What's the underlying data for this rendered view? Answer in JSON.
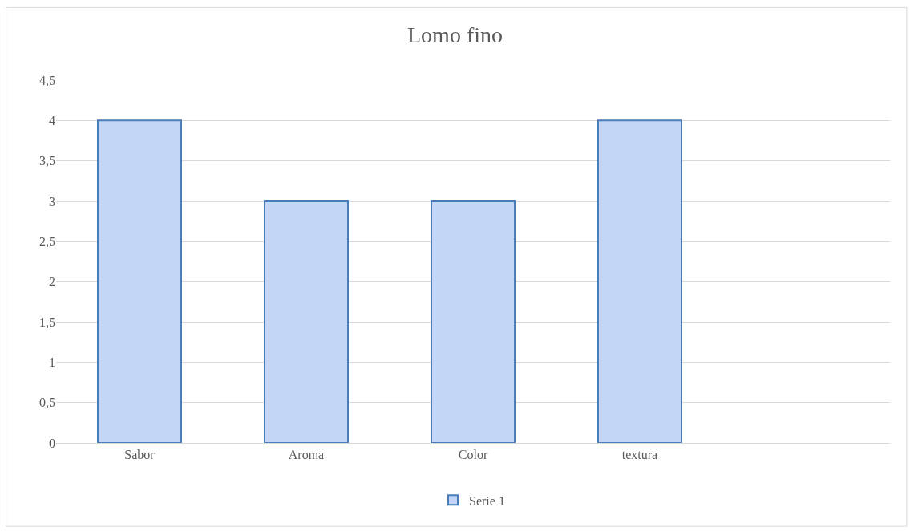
{
  "chart_data": {
    "type": "bar",
    "title": "Lomo fino",
    "categories": [
      "Sabor",
      "Aroma",
      "Color",
      "textura",
      null
    ],
    "series": [
      {
        "name": "Serie 1",
        "color": "#c3d6f6",
        "values": [
          4,
          3,
          3,
          4,
          null
        ]
      }
    ],
    "ylim": [
      0,
      4.5
    ],
    "yticks": [
      0,
      {
        "value": 0.5,
        "label": "0,5"
      },
      1,
      {
        "value": 1.5,
        "label": "1,5"
      },
      2,
      {
        "value": 2.5,
        "label": "2,5"
      },
      3,
      {
        "value": 3.5,
        "label": "3,5"
      },
      4,
      {
        "value": 4.5,
        "label": "4,5"
      }
    ],
    "grid": "y",
    "legend": "bottom"
  }
}
